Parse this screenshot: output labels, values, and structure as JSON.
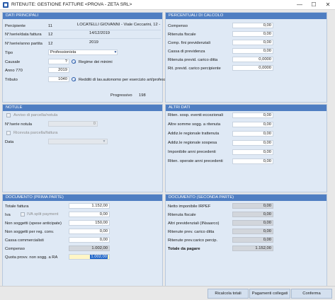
{
  "window": {
    "title": "RITENUTE: GESTIONE FATTURE <PROVA - ZETA SRL>",
    "minimize": "—",
    "maximize": "☐",
    "close": "✕"
  },
  "dati_principali": {
    "header": "DATI PRINCIPALI",
    "percipiente_label": "Percipiente",
    "percipiente_code": "11",
    "percipiente_name": "LOCATELLI GIOVANNI  - Viale Ceccarini, 12 -",
    "serie_fattura_label": "N°/serie/data fattura",
    "serie_fattura_num": "12",
    "serie_fattura_data": "14/12/2019",
    "serie_anno_label": "N°/serie/anno partita",
    "serie_anno_num": "12",
    "serie_anno_anno": "2019",
    "tipo_label": "Tipo",
    "tipo_value": "Professionista",
    "causale_label": "Causale",
    "causale_value": "?",
    "regime_minimi_label": "Regime dei minimi",
    "anno770_label": "Anno 770",
    "anno770_value": "2019",
    "tributo_label": "Tributo",
    "tributo_value": "1040",
    "tributo_desc": "Redditi di lav.autonomo per esercizio art/profess",
    "progressivo_label": "Progressivo",
    "progressivo_value": "198"
  },
  "percentuali": {
    "header": "PERCENTUALI DI CALCOLO",
    "rows": [
      {
        "label": "Compenso",
        "value": "0,00"
      },
      {
        "label": "Ritenuta fiscale",
        "value": "0,00"
      },
      {
        "label": "Comp. fini previdenziali",
        "value": "0,00"
      },
      {
        "label": "Cassa di previdenza",
        "value": "0,00"
      },
      {
        "label": "Ritenuta previd. carico ditta",
        "value": "0,0000"
      },
      {
        "label": "Rit. previd. carico percipiente",
        "value": "0,0000"
      }
    ]
  },
  "notule": {
    "header": "NOTULE",
    "avviso_label": "Avviso di parcella/notula",
    "serie_notula_label": "N°/serie notula",
    "serie_notula_value": "0",
    "ricevuta_label": "Ricevuta parcella/fattura",
    "data_label": "Data"
  },
  "altri_dati": {
    "header": "ALTRI DATI",
    "rows": [
      {
        "label": "Riten. sosp. eventi eccezionali",
        "value": "0,00"
      },
      {
        "label": "Altre somme sogg. a ritenuta",
        "value": "0,00"
      },
      {
        "label": "Addiz.le regionale trattenuta",
        "value": "0,00"
      },
      {
        "label": "Addiz.le regionale sospesa",
        "value": "0,00"
      },
      {
        "label": "Imponibile anni precedenti",
        "value": "0,00"
      },
      {
        "label": "Riten. operate anni precedenti",
        "value": "0,00"
      }
    ]
  },
  "doc_prima": {
    "header": "DOCUMENTO (PRIMA PARTE)",
    "totale_fattura_label": "Totale fattura",
    "totale_fattura_value": "1.152,00",
    "iva_label": "Iva",
    "iva_split_label": "IVA split payment",
    "iva_value": "0,00",
    "non_soggetti_label": "Non soggetti (spese anticipate)",
    "non_soggetti_value": "150,00",
    "non_soggetti_conv_label": "Non soggetti per reg. conv.",
    "non_soggetti_conv_value": "0,00",
    "cassa_label": "Cassa commercialisti",
    "cassa_value": "0,00",
    "compenso_label": "Compenso",
    "compenso_value": "1.002,00",
    "quota_label": "Quota provv. non sogg. a RA",
    "quota_value": "1.002,00"
  },
  "doc_seconda": {
    "header": "DOCUMENTO (SECONDA PARTE)",
    "rows": [
      {
        "label": "Netto imponibile IRPEF",
        "value": "0,00"
      },
      {
        "label": "Ritenuta fiscale",
        "value": "0,00"
      },
      {
        "label": "Altri previdenziali (INsaarco)",
        "value": "0,00"
      },
      {
        "label": "Ritenute prev. carico ditta",
        "value": "0,00"
      },
      {
        "label": "Ritenute prev.carico percip.",
        "value": "0,00"
      }
    ],
    "totale_label": "Totale da pagare",
    "totale_value": "1.152,00"
  },
  "buttons": {
    "ricalcola": "Ricalcola totali",
    "pagamenti": "Pagamenti collegati",
    "conferma": "Conferma"
  }
}
